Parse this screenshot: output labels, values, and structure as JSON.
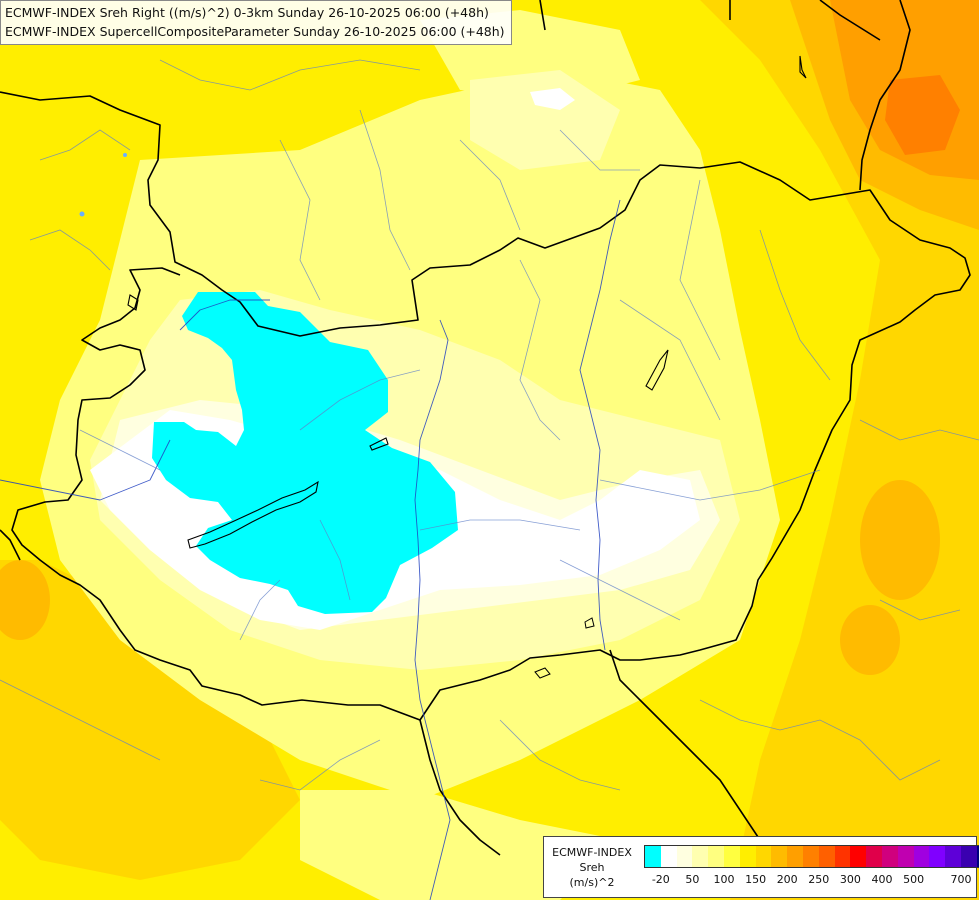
{
  "title": {
    "line1": "ECMWF-INDEX Sreh Right ((m/s)^2) 0-3km Sunday 26-10-2025 06:00 (+48h)",
    "line2": "ECMWF-INDEX SupercellCompositeParameter Sunday 26-10-2025 06:00 (+48h)"
  },
  "legend": {
    "label_line1": "ECMWF-INDEX",
    "label_line2": "Sreh",
    "label_line3": "(m/s)^2",
    "swatches": [
      "#00ffff",
      "#ffffff",
      "#ffffe0",
      "#ffffb0",
      "#ffff80",
      "#ffff40",
      "#ffee00",
      "#ffd700",
      "#ffbb00",
      "#ff9f00",
      "#ff8000",
      "#ff6000",
      "#ff3300",
      "#ff0000",
      "#e0004a",
      "#d0007e",
      "#c000b0",
      "#a000e0",
      "#8000ff",
      "#5e00d8",
      "#3a00b0",
      "#000080"
    ],
    "ticks": [
      "-20",
      "50",
      "100",
      "150",
      "200",
      "250",
      "300",
      "400",
      "500",
      "700"
    ]
  },
  "map": {
    "background_color": "#ffee00",
    "colors": {
      "pale_yellow": "#ffff80",
      "light_yellow": "#ffffb0",
      "cream": "#ffffe0",
      "white": "#ffffff",
      "cyan": "#00ffff",
      "gold": "#ffd700",
      "orange": "#ffbb00",
      "dark_orange": "#ff9f00",
      "deep_orange": "#ff8000",
      "border": "#000000",
      "river": "#2040c0",
      "region_line": "#6080c8"
    }
  }
}
